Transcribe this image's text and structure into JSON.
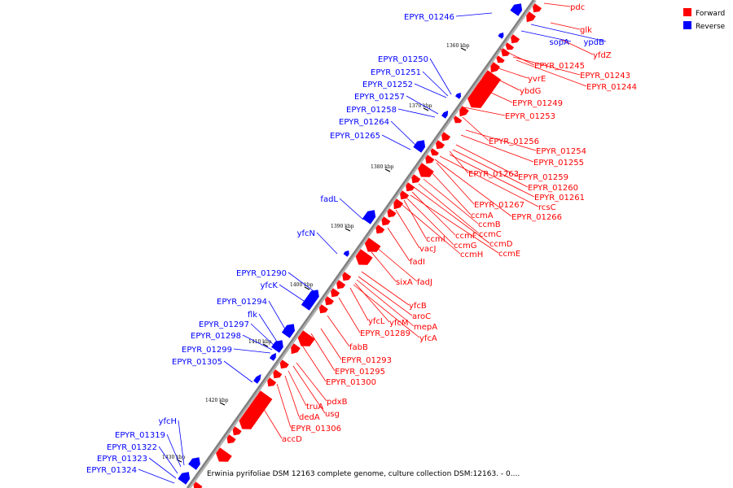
{
  "legend": {
    "forward_label": "Forward",
    "reverse_label": "Reverse",
    "forward_color": "#ff0000",
    "reverse_color": "#0000ff"
  },
  "caption": "Erwinia pyrifoliae DSM 12163 complete genome, culture collection DSM:12163. - 0....",
  "colors": {
    "forward": "#ff0000",
    "reverse": "#0000ff",
    "backbone": "#808080"
  },
  "ticks": [
    "1360 kbp",
    "1370 kbp",
    "1380 kbp",
    "1390 kbp",
    "1400 kbp",
    "1410 kbp",
    "1420 kbp",
    "1430 kbp"
  ],
  "forward_genes": [
    "pdc",
    "glk",
    "yfdZ",
    "EPYR_01245",
    "EPYR_01243",
    "EPYR_01244",
    "yvrE",
    "ybdG",
    "EPYR_01249",
    "EPYR_01253",
    "EPYR_01256",
    "EPYR_01254",
    "EPYR_01255",
    "EPYR_01263",
    "EPYR_01259",
    "EPYR_01260",
    "EPYR_01261",
    "EPYR_01267",
    "rcsC",
    "EPYR_01266",
    "ccmA",
    "ccmB",
    "ccmC",
    "ccmF",
    "ccmD",
    "ccmI",
    "ccmG",
    "ccmE",
    "vacJ",
    "ccmH",
    "fadI",
    "sixA",
    "fadJ",
    "yfcB",
    "aroC",
    "yfcL",
    "yfcM",
    "mepA",
    "yfcA",
    "EPYR_01289",
    "fabB",
    "EPYR_01293",
    "EPYR_01295",
    "EPYR_01300",
    "pdxB",
    "truA",
    "usg",
    "dedA",
    "EPYR_01306",
    "accD"
  ],
  "reverse_genes": [
    "EPYR_01246",
    "sopA",
    "ypdB",
    "EPYR_01250",
    "EPYR_01251",
    "EPYR_01252",
    "EPYR_01257",
    "EPYR_01258",
    "EPYR_01264",
    "EPYR_01265",
    "fadL",
    "yfcN",
    "EPYR_01290",
    "yfcK",
    "EPYR_01294",
    "flk",
    "EPYR_01297",
    "EPYR_01298",
    "EPYR_01299",
    "EPYR_01305",
    "yfcH",
    "EPYR_01319",
    "EPYR_01322",
    "EPYR_01323",
    "EPYR_01324"
  ]
}
